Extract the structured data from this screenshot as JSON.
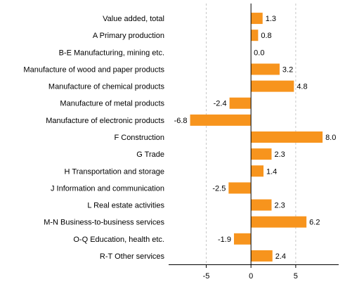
{
  "chart_data": {
    "type": "bar",
    "orientation": "horizontal",
    "categories": [
      "Value added, total",
      "A Primary production",
      "B-E Manufacturing, mining etc.",
      "Manufacture of wood and paper products",
      "Manufacture of chemical products",
      "Manufacture of metal products",
      "Manufacture of electronic products",
      "F Construction",
      "G Trade",
      "H Transportation and storage",
      "J Information and communication",
      "L Real estate activities",
      "M-N Business-to-business services",
      "O-Q Education, health etc.",
      "R-T Other services"
    ],
    "values": [
      1.3,
      0.8,
      0.0,
      3.2,
      4.8,
      -2.4,
      -6.8,
      8.0,
      2.3,
      1.4,
      -2.5,
      2.3,
      6.2,
      -1.9,
      2.4
    ],
    "value_labels": [
      "1.3",
      "0.8",
      "0.0",
      "3.2",
      "4.8",
      "-2.4",
      "-6.8",
      "8.0",
      "2.3",
      "1.4",
      "-2.5",
      "2.3",
      "6.2",
      "-1.9",
      "2.4"
    ],
    "x_ticks": [
      -5,
      0,
      5
    ],
    "x_tick_labels": [
      "-5",
      "0",
      "5"
    ],
    "xlim": [
      -9.2,
      9.8
    ],
    "grid": "vertical dashed",
    "legend": "none",
    "title": "",
    "xlabel": "",
    "ylabel": "",
    "bar_color": "#f7941d",
    "grid_color": "#c8c8c8",
    "axis_color": "#000000"
  }
}
